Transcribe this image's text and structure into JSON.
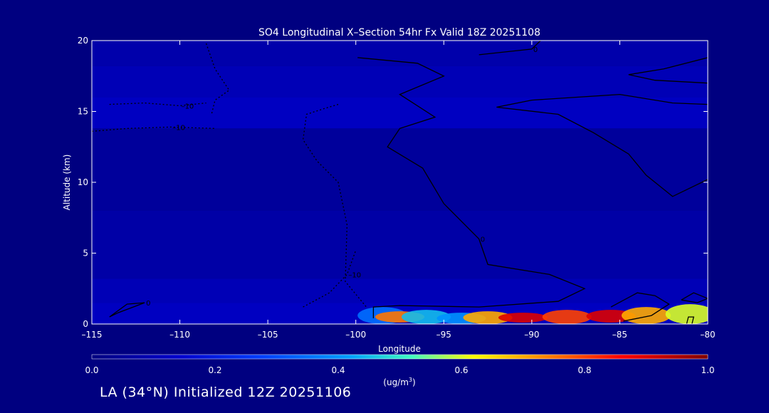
{
  "chart_data": {
    "type": "heatmap",
    "title": "SO4 Longitudinal X–Section 54hr  Fx Valid 18Z 20251108",
    "xlabel": "Longitude",
    "ylabel": "Altitude (km)",
    "xlim": [
      -115,
      -80
    ],
    "ylim": [
      0,
      20
    ],
    "x_ticks": [
      -115,
      -110,
      -105,
      -100,
      -95,
      -90,
      -85,
      -80
    ],
    "x_tick_labels": [
      "–115",
      "–110",
      "–105",
      "–100",
      "–95",
      "–90",
      "–85",
      "–80"
    ],
    "y_ticks": [
      0,
      5,
      10,
      15,
      20
    ],
    "y_tick_labels": [
      "0",
      "5",
      "10",
      "15",
      "20"
    ],
    "colorbar": {
      "min": 0.0,
      "max": 1.0,
      "ticks": [
        0.0,
        0.2,
        0.4,
        0.6,
        0.8,
        1.0
      ],
      "tick_labels": [
        "0.0",
        "0.2",
        "0.4",
        "0.6",
        "0.8",
        "1.0"
      ],
      "units": "(ug/m",
      "units_sup": "3",
      "units_close": ")"
    },
    "altitude_bands": [
      {
        "y0": 18.2,
        "y1": 20,
        "value": 0.08
      },
      {
        "y0": 16.0,
        "y1": 18.2,
        "value": 0.1
      },
      {
        "y0": 13.8,
        "y1": 16.0,
        "value": 0.12
      },
      {
        "y0": 8.0,
        "y1": 13.8,
        "value": 0.05
      },
      {
        "y0": 3.2,
        "y1": 8.0,
        "value": 0.07
      },
      {
        "y0": 1.5,
        "y1": 3.2,
        "value": 0.1
      },
      {
        "y0": 0.0,
        "y1": 1.5,
        "value": 0.12
      }
    ],
    "surface_maximum": [
      {
        "lon": -98.5,
        "alt0": 0.0,
        "alt1": 1.2,
        "value": 0.35
      },
      {
        "lon": -97.5,
        "alt0": 0.1,
        "alt1": 0.9,
        "value": 0.75
      },
      {
        "lon": -96.0,
        "alt0": 0.0,
        "alt1": 1.0,
        "value": 0.45
      },
      {
        "lon": -94.0,
        "alt0": 0.0,
        "alt1": 0.8,
        "value": 0.4
      },
      {
        "lon": -92.5,
        "alt0": 0.0,
        "alt1": 0.9,
        "value": 0.7
      },
      {
        "lon": -90.5,
        "alt0": 0.1,
        "alt1": 0.8,
        "value": 0.9
      },
      {
        "lon": -88.0,
        "alt0": 0.0,
        "alt1": 1.0,
        "value": 0.8
      },
      {
        "lon": -85.5,
        "alt0": 0.1,
        "alt1": 1.0,
        "value": 0.9
      },
      {
        "lon": -83.5,
        "alt0": 0.0,
        "alt1": 1.2,
        "value": 0.7
      },
      {
        "lon": -81.0,
        "alt0": 0.0,
        "alt1": 1.4,
        "value": 0.6
      }
    ],
    "contours": [
      {
        "label": "0",
        "style": "solid",
        "points": [
          [
            -99.9,
            18.8
          ],
          [
            -96.5,
            18.4
          ],
          [
            -95.0,
            17.5
          ],
          [
            -97.5,
            16.2
          ],
          [
            -95.5,
            14.6
          ],
          [
            -97.5,
            13.8
          ],
          [
            -98.2,
            12.5
          ],
          [
            -96.2,
            11.0
          ],
          [
            -95.0,
            8.5
          ],
          [
            -93.0,
            6.0
          ],
          [
            -92.5,
            4.2
          ],
          [
            -89.0,
            3.5
          ],
          [
            -87.0,
            2.5
          ],
          [
            -88.5,
            1.6
          ],
          [
            -93.0,
            1.2
          ],
          [
            -97.5,
            1.3
          ],
          [
            -99.0,
            1.2
          ],
          [
            -99.0,
            0.4
          ]
        ]
      },
      {
        "label": "0",
        "style": "solid",
        "points": [
          [
            -93.0,
            19.0
          ],
          [
            -91.5,
            19.2
          ],
          [
            -90.0,
            19.4
          ],
          [
            -89.5,
            20.0
          ]
        ]
      },
      {
        "label": "",
        "style": "solid",
        "points": [
          [
            -80.0,
            15.5
          ],
          [
            -82.0,
            15.6
          ],
          [
            -85.0,
            16.2
          ],
          [
            -87.5,
            16.0
          ],
          [
            -90.0,
            15.8
          ],
          [
            -92.0,
            15.3
          ],
          [
            -88.5,
            14.8
          ],
          [
            -86.5,
            13.5
          ],
          [
            -84.5,
            12.0
          ],
          [
            -83.5,
            10.5
          ],
          [
            -82.0,
            9.0
          ],
          [
            -80.0,
            10.2
          ]
        ]
      },
      {
        "label": "",
        "style": "solid",
        "points": [
          [
            -80.0,
            17.0
          ],
          [
            -83.0,
            17.2
          ],
          [
            -84.5,
            17.6
          ],
          [
            -82.5,
            18.0
          ],
          [
            -80.0,
            18.8
          ]
        ]
      },
      {
        "label": "0",
        "style": "solid",
        "points": [
          [
            -114.0,
            0.5
          ],
          [
            -113.0,
            1.4
          ],
          [
            -112.0,
            1.5
          ],
          [
            -113.5,
            0.8
          ],
          [
            -114.0,
            0.5
          ]
        ]
      },
      {
        "label": "",
        "style": "solid",
        "points": [
          [
            -85.5,
            1.2
          ],
          [
            -84.0,
            2.2
          ],
          [
            -83.0,
            2.0
          ],
          [
            -82.2,
            1.4
          ],
          [
            -83.2,
            0.6
          ],
          [
            -84.8,
            0.2
          ]
        ]
      },
      {
        "label": "",
        "style": "solid",
        "points": [
          [
            -81.5,
            1.7
          ],
          [
            -80.8,
            2.2
          ],
          [
            -80.0,
            1.8
          ],
          [
            -80.6,
            1.5
          ],
          [
            -81.5,
            1.7
          ]
        ]
      },
      {
        "label": "",
        "style": "solid",
        "points": [
          [
            -80.9,
            0.0
          ],
          [
            -80.8,
            0.5
          ],
          [
            -81.1,
            0.5
          ],
          [
            -81.2,
            0.0
          ]
        ]
      },
      {
        "label": "–10",
        "style": "dotted",
        "points": [
          [
            -114.0,
            15.5
          ],
          [
            -112.0,
            15.6
          ],
          [
            -110.0,
            15.4
          ],
          [
            -108.5,
            15.6
          ]
        ]
      },
      {
        "label": "–10",
        "style": "dotted",
        "points": [
          [
            -115.0,
            13.6
          ],
          [
            -113.0,
            13.8
          ],
          [
            -110.5,
            13.9
          ],
          [
            -108.0,
            13.8
          ]
        ]
      },
      {
        "label": "–10",
        "style": "dotted",
        "points": [
          [
            -103.0,
            1.2
          ],
          [
            -101.5,
            2.2
          ],
          [
            -100.5,
            3.5
          ],
          [
            -100.0,
            5.2
          ]
        ]
      },
      {
        "label": "",
        "style": "dotted",
        "points": [
          [
            -108.5,
            19.8
          ],
          [
            -108.0,
            18.0
          ],
          [
            -107.2,
            16.5
          ],
          [
            -108.0,
            15.8
          ],
          [
            -108.2,
            14.8
          ]
        ]
      },
      {
        "label": "",
        "style": "dotted",
        "points": [
          [
            -101.0,
            15.5
          ],
          [
            -101.8,
            15.2
          ],
          [
            -102.8,
            14.8
          ],
          [
            -103.0,
            13.0
          ],
          [
            -102.2,
            11.5
          ],
          [
            -101.0,
            10.0
          ],
          [
            -100.5,
            7.0
          ],
          [
            -100.6,
            3.0
          ],
          [
            -99.4,
            1.2
          ]
        ]
      }
    ]
  },
  "footer": {
    "text": "LA (34°N) Initialized 12Z 20251106"
  }
}
